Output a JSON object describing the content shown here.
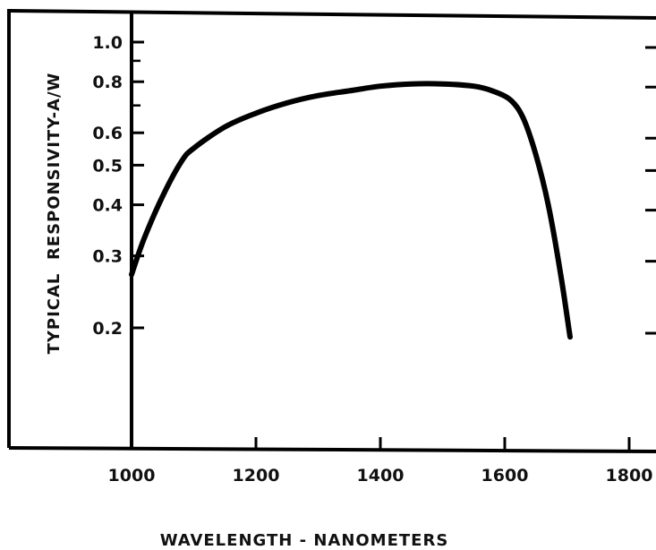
{
  "chart_data": {
    "type": "line",
    "title": "",
    "xlabel": "WAVELENGTH - NANOMETERS",
    "ylabel": "TYPICAL  RESPONSIVITY-A/W",
    "y_scale": "log",
    "xlim": [
      1000,
      1800
    ],
    "ylim": [
      0.1,
      1.2
    ],
    "x_ticks": [
      1000,
      1200,
      1400,
      1600,
      1800
    ],
    "x_tick_labels": [
      "1000",
      "1200",
      "1400",
      "1600",
      "1800"
    ],
    "y_ticks": [
      0.2,
      0.3,
      0.4,
      0.5,
      0.6,
      0.8,
      1.0
    ],
    "y_tick_labels": [
      "0.2",
      "0.3",
      "0.4",
      "0.5",
      "0.6",
      "0.8",
      "1.0"
    ],
    "grid": false,
    "series": [
      {
        "x": [
          1000,
          1020,
          1050,
          1080,
          1100,
          1150,
          1200,
          1250,
          1300,
          1350,
          1400,
          1450,
          1500,
          1550,
          1580,
          1610,
          1630,
          1650,
          1670,
          1690,
          1705
        ],
        "y": [
          0.27,
          0.33,
          0.42,
          0.51,
          0.55,
          0.62,
          0.67,
          0.71,
          0.74,
          0.76,
          0.78,
          0.79,
          0.79,
          0.78,
          0.76,
          0.72,
          0.65,
          0.53,
          0.4,
          0.27,
          0.19
        ]
      }
    ]
  }
}
